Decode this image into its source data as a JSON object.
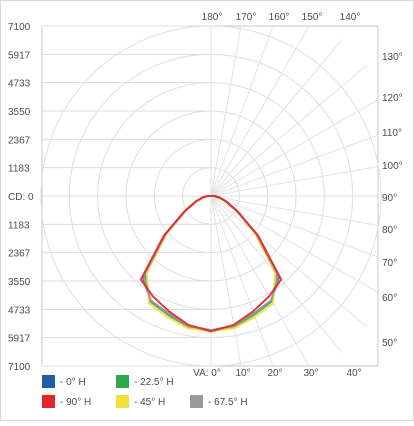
{
  "chart_data": {
    "type": "polar-photometric",
    "ylabels_left": [
      "7100",
      "5917",
      "4733",
      "3550",
      "2367",
      "1183",
      "CD: 0",
      "1183",
      "2367",
      "3550",
      "4733",
      "5917",
      "7100"
    ],
    "angle_labels_top": [
      "180°",
      "170°",
      "160°",
      "150°",
      "140°"
    ],
    "angle_labels_right": [
      "130°",
      "120°",
      "110°",
      "100°",
      "90°",
      "80°",
      "70°",
      "60°",
      "50°"
    ],
    "angle_labels_bottom": [
      "VA: 0°",
      "10°",
      "20°",
      "30°",
      "40°"
    ],
    "rmax": 7100,
    "series": [
      {
        "name": "- 0° H",
        "color": "#1f5fa8",
        "angles": [
          0,
          10,
          20,
          30,
          40,
          50,
          60,
          70,
          80,
          90
        ],
        "values": [
          5900,
          5800,
          5500,
          5300,
          4650,
          2600,
          1300,
          700,
          360,
          150
        ]
      },
      {
        "name": "- 22.5° H",
        "color": "#2fa84a",
        "angles": [
          0,
          10,
          20,
          30,
          40,
          50,
          60,
          70,
          80,
          90
        ],
        "values": [
          5950,
          5850,
          5550,
          5350,
          4500,
          2550,
          1280,
          680,
          350,
          150
        ]
      },
      {
        "name": "- 45° H",
        "color": "#f1e13a",
        "angles": [
          0,
          10,
          20,
          30,
          40,
          50,
          60,
          70,
          80,
          90
        ],
        "values": [
          5950,
          5900,
          5650,
          5450,
          4400,
          2500,
          1250,
          660,
          340,
          150
        ]
      },
      {
        "name": "- 67.5° H",
        "color": "#9a9a9a",
        "angles": [
          0,
          10,
          20,
          30,
          40,
          50,
          60,
          70,
          80,
          90
        ],
        "values": [
          5900,
          5800,
          5500,
          5300,
          4600,
          2600,
          1300,
          700,
          360,
          150
        ]
      },
      {
        "name": "- 90° H",
        "color": "#e2262b",
        "angles": [
          0,
          10,
          20,
          30,
          40,
          50,
          60,
          70,
          80,
          90
        ],
        "values": [
          5950,
          5750,
          5400,
          5100,
          4800,
          2700,
          1350,
          720,
          380,
          150
        ]
      }
    ],
    "legend": "bottom-left"
  }
}
